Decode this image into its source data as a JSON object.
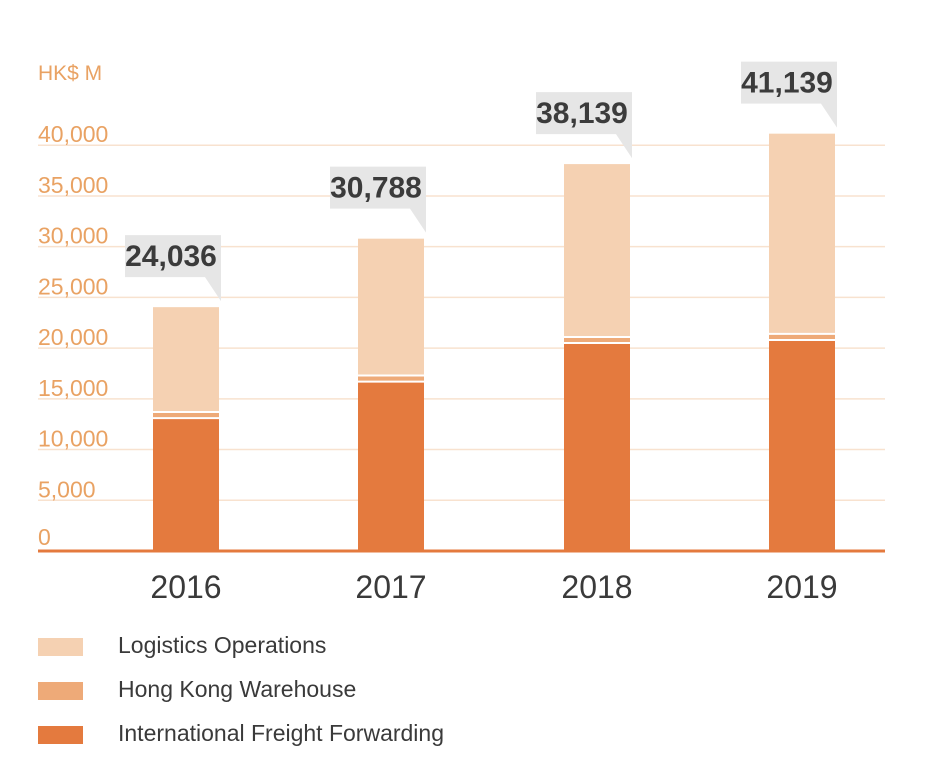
{
  "chart_data": {
    "type": "bar",
    "stacked": true,
    "unit_label": "HK$ M",
    "categories": [
      "2016",
      "2017",
      "2018",
      "2019"
    ],
    "yticks": [
      "0",
      "5,000",
      "10,000",
      "15,000",
      "20,000",
      "25,000",
      "30,000",
      "35,000",
      "40,000"
    ],
    "ytick_values": [
      0,
      5000,
      10000,
      15000,
      20000,
      25000,
      30000,
      35000,
      40000
    ],
    "ylim": [
      0,
      41500
    ],
    "grid": true,
    "legend_position": "bottom-left",
    "series": [
      {
        "name": "International Freight Forwarding",
        "color": "#e47a3e",
        "values": [
          13100,
          16700,
          20500,
          20800
        ]
      },
      {
        "name": "Hong Kong Warehouse",
        "color": "#eeaa78",
        "values": [
          600,
          600,
          600,
          600
        ]
      },
      {
        "name": "Logistics Operations",
        "color": "#f5d1b2",
        "values": [
          10336,
          13488,
          17039,
          19739
        ]
      }
    ],
    "totals": [
      "24,036",
      "30,788",
      "38,139",
      "41,139"
    ],
    "colors": {
      "axis_text": "#e9a263",
      "axis_line": "#e47a3e",
      "grid": "#f8e2cf",
      "callout_bg": "#e6e6e6",
      "callout_text": "#3b3b3b",
      "category_text": "#3a3a3a"
    }
  },
  "legend": [
    {
      "label": "Logistics Operations",
      "color": "#f5d1b2"
    },
    {
      "label": "Hong Kong Warehouse",
      "color": "#eeaa78"
    },
    {
      "label": "International Freight Forwarding",
      "color": "#e47a3e"
    }
  ]
}
